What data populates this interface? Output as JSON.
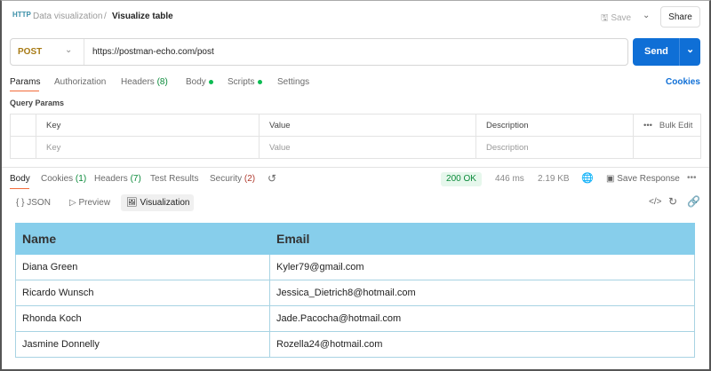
{
  "header": {
    "breadcrumb_parent": "Data visualization",
    "separator": "/",
    "title": "Visualize table",
    "save_label": "Save",
    "share_label": "Share"
  },
  "request": {
    "method": "POST",
    "url": "https://postman-echo.com/post",
    "send_label": "Send"
  },
  "request_tabs": [
    {
      "label": "Params"
    },
    {
      "label": "Authorization"
    },
    {
      "label": "Headers",
      "count": "(8)"
    },
    {
      "label": "Body"
    },
    {
      "label": "Scripts"
    },
    {
      "label": "Settings"
    }
  ],
  "cookies_label": "Cookies",
  "query_params": {
    "title": "Query Params",
    "columns": [
      "Key",
      "Value",
      "Description"
    ],
    "bulk_edit": "Bulk Edit",
    "placeholders": [
      "Key",
      "Value",
      "Description"
    ]
  },
  "response_tabs": [
    {
      "label": "Body"
    },
    {
      "label": "Cookies",
      "count": "(1)"
    },
    {
      "label": "Headers",
      "count": "(7)"
    },
    {
      "label": "Test Results"
    },
    {
      "label": "Security",
      "count": "(2)"
    }
  ],
  "status": {
    "code": "200 OK",
    "time": "446 ms",
    "size": "2.19 KB",
    "save_response": "Save Response"
  },
  "view_modes": [
    {
      "label": "JSON"
    },
    {
      "label": "Preview"
    },
    {
      "label": "Visualization"
    }
  ],
  "table": {
    "columns": [
      "Name",
      "Email"
    ],
    "rows": [
      [
        "Diana Green",
        "Kyler79@gmail.com"
      ],
      [
        "Ricardo Wunsch",
        "Jessica_Dietrich8@hotmail.com"
      ],
      [
        "Rhonda Koch",
        "Jade.Pacocha@hotmail.com"
      ],
      [
        "Jasmine Donnelly",
        "Rozella24@hotmail.com"
      ]
    ],
    "header_color": "#87CEEB"
  }
}
